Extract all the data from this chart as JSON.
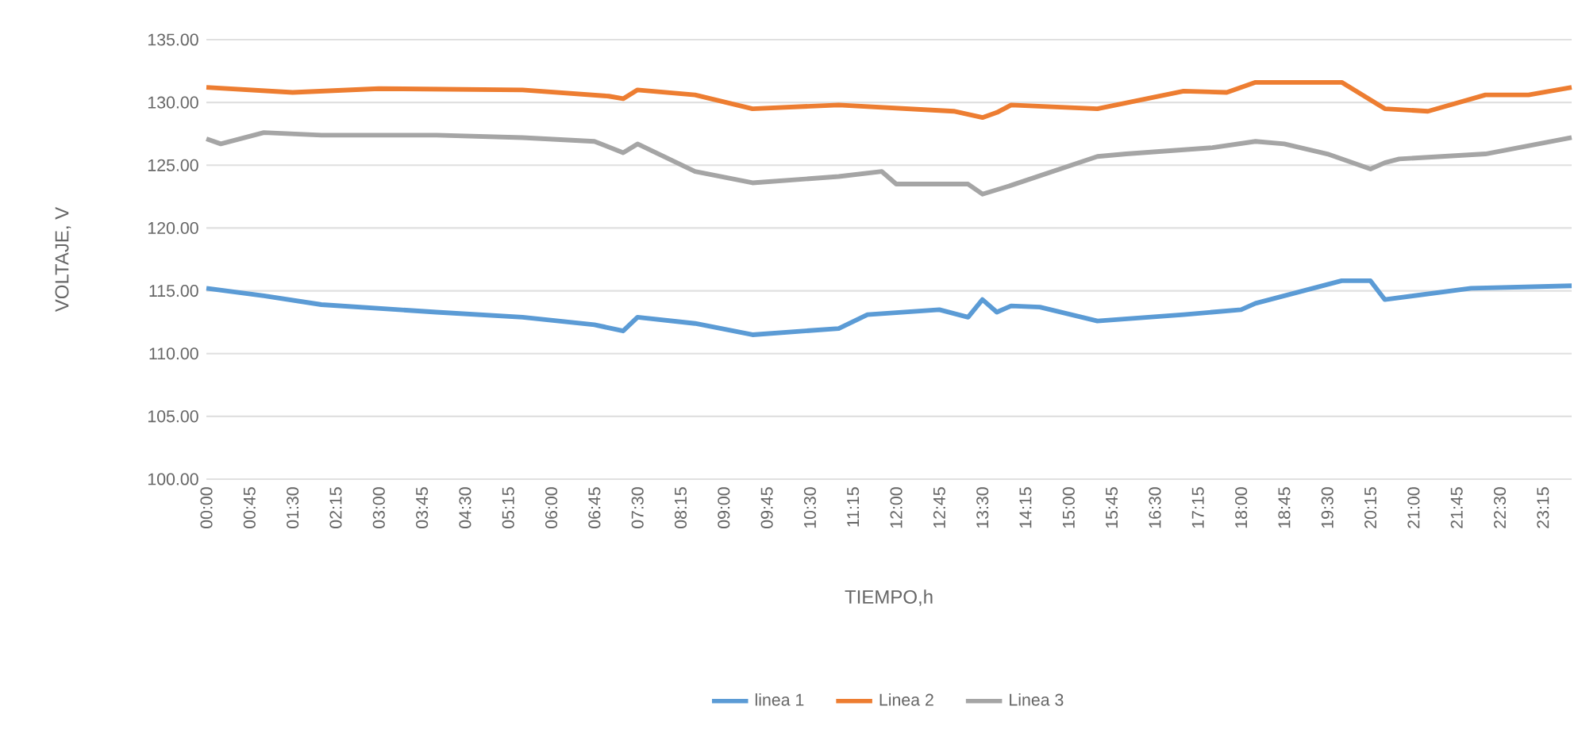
{
  "chart_data": {
    "type": "line",
    "xlabel": "TIEMPO,h",
    "ylabel": "VOLTAJE, V",
    "xlim": [
      0,
      23.75
    ],
    "xticks": [
      {
        "value": 0,
        "label": "00:00"
      },
      {
        "value": 0.75,
        "label": "00:45"
      },
      {
        "value": 1.5,
        "label": "01:30"
      },
      {
        "value": 2.25,
        "label": "02:15"
      },
      {
        "value": 3,
        "label": "03:00"
      },
      {
        "value": 3.75,
        "label": "03:45"
      },
      {
        "value": 4.5,
        "label": "04:30"
      },
      {
        "value": 5.25,
        "label": "05:15"
      },
      {
        "value": 6,
        "label": "06:00"
      },
      {
        "value": 6.75,
        "label": "06:45"
      },
      {
        "value": 7.5,
        "label": "07:30"
      },
      {
        "value": 8.25,
        "label": "08:15"
      },
      {
        "value": 9,
        "label": "09:00"
      },
      {
        "value": 9.75,
        "label": "09:45"
      },
      {
        "value": 10.5,
        "label": "10:30"
      },
      {
        "value": 11.25,
        "label": "11:15"
      },
      {
        "value": 12,
        "label": "12:00"
      },
      {
        "value": 12.75,
        "label": "12:45"
      },
      {
        "value": 13.5,
        "label": "13:30"
      },
      {
        "value": 14.25,
        "label": "14:15"
      },
      {
        "value": 15,
        "label": "15:00"
      },
      {
        "value": 15.75,
        "label": "15:45"
      },
      {
        "value": 16.5,
        "label": "16:30"
      },
      {
        "value": 17.25,
        "label": "17:15"
      },
      {
        "value": 18,
        "label": "18:00"
      },
      {
        "value": 18.75,
        "label": "18:45"
      },
      {
        "value": 19.5,
        "label": "19:30"
      },
      {
        "value": 20.25,
        "label": "20:15"
      },
      {
        "value": 21,
        "label": "21:00"
      },
      {
        "value": 21.75,
        "label": "21:45"
      },
      {
        "value": 22.5,
        "label": "22:30"
      },
      {
        "value": 23.25,
        "label": "23:15"
      }
    ],
    "ylim": [
      100,
      135
    ],
    "yticks": [
      {
        "value": 100,
        "label": "100.00"
      },
      {
        "value": 105,
        "label": "105.00"
      },
      {
        "value": 110,
        "label": "110.00"
      },
      {
        "value": 115,
        "label": "115.00"
      },
      {
        "value": 120,
        "label": "120.00"
      },
      {
        "value": 125,
        "label": "125.00"
      },
      {
        "value": 130,
        "label": "130.00"
      },
      {
        "value": 135,
        "label": "135.00"
      }
    ],
    "grid": "y",
    "legend": "bottom",
    "marker": "none",
    "line_style": "solid",
    "series": [
      {
        "name": "linea 1",
        "color": "#5b9bd5",
        "x": [
          0,
          1,
          2,
          4,
          5.5,
          6.75,
          7.25,
          7.5,
          8.5,
          9.5,
          11,
          11.5,
          12.75,
          13.25,
          13.5,
          13.75,
          14,
          14.5,
          15.5,
          17,
          18,
          18.25,
          19.75,
          20.25,
          20.5,
          22,
          23.75
        ],
        "values": [
          115.2,
          114.6,
          113.9,
          113.3,
          112.9,
          112.3,
          111.8,
          112.9,
          112.4,
          111.5,
          112.0,
          113.1,
          113.5,
          112.9,
          114.3,
          113.3,
          113.8,
          113.7,
          112.6,
          113.1,
          113.5,
          114.0,
          115.8,
          115.8,
          114.3,
          115.2,
          115.4
        ]
      },
      {
        "name": "Linea 2",
        "color": "#ed7d31",
        "x": [
          0,
          1.5,
          3,
          5.5,
          7,
          7.25,
          7.5,
          8.5,
          9.5,
          11,
          13,
          13.5,
          13.75,
          14,
          15.5,
          17,
          17.75,
          18.25,
          19.75,
          20.5,
          21.25,
          22.25,
          23,
          23.75
        ],
        "values": [
          131.2,
          130.8,
          131.1,
          131.0,
          130.5,
          130.3,
          131.0,
          130.6,
          129.5,
          129.8,
          129.3,
          128.8,
          129.2,
          129.8,
          129.5,
          130.9,
          130.8,
          131.6,
          131.6,
          129.5,
          129.3,
          130.6,
          130.6,
          131.2
        ]
      },
      {
        "name": "Linea 3",
        "color": "#a5a5a5",
        "x": [
          0,
          0.25,
          1,
          2,
          4,
          5.5,
          6.75,
          7.25,
          7.5,
          8.5,
          9.5,
          11,
          11.75,
          12,
          13.25,
          13.5,
          14,
          15.5,
          16,
          17.5,
          18.25,
          18.75,
          19.5,
          20.25,
          20.5,
          20.75,
          22.25,
          23.75
        ],
        "values": [
          127.1,
          126.7,
          127.6,
          127.4,
          127.4,
          127.2,
          126.9,
          126.0,
          126.7,
          124.5,
          123.6,
          124.1,
          124.5,
          123.5,
          123.5,
          122.7,
          123.4,
          125.7,
          125.9,
          126.4,
          126.9,
          126.7,
          125.9,
          124.7,
          125.2,
          125.5,
          125.9,
          127.2
        ]
      }
    ]
  }
}
